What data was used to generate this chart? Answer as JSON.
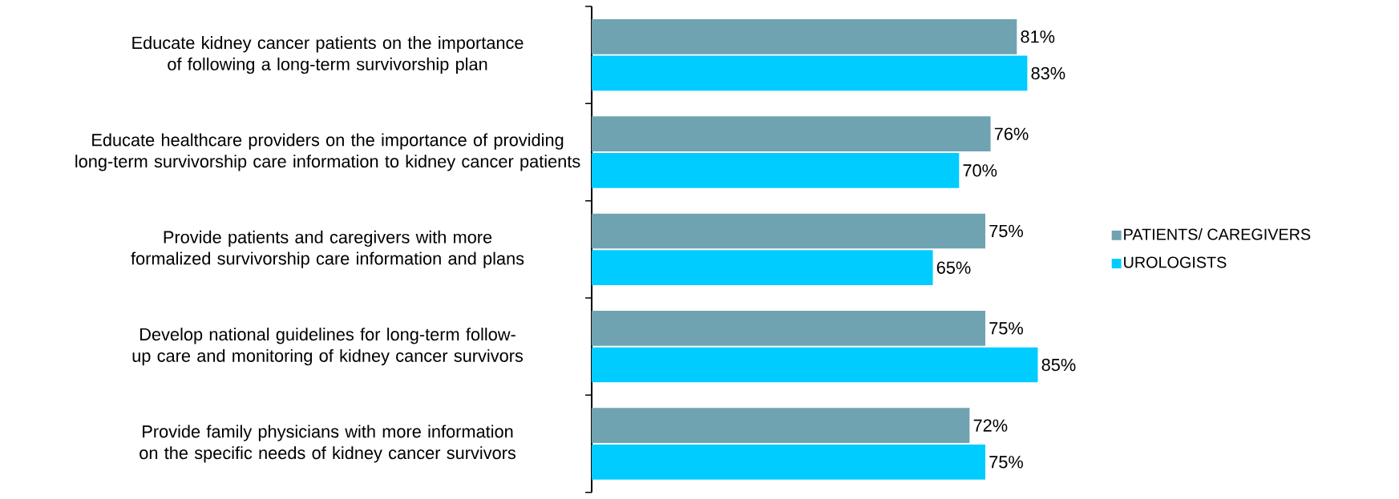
{
  "chart_data": {
    "type": "bar",
    "orientation": "horizontal",
    "categories": [
      "Educate kidney cancer patients on the importance of following a long-term survivorship plan",
      "Educate healthcare providers on the importance of providing long-term survivorship care information to kidney cancer patients",
      "Provide patients and caregivers with more formalized survivorship care information and plans",
      "Develop national guidelines for long-term follow-up care and monitoring of kidney cancer survivors",
      "Provide family physicians with more information on the specific needs of kidney cancer survivors"
    ],
    "series": [
      {
        "name": "PATIENTS/ CAREGIVERS",
        "color": "#6fa3b2",
        "values": [
          81,
          76,
          75,
          75,
          72
        ],
        "value_labels": [
          "81%",
          "76%",
          "75%",
          "75%",
          "72%"
        ]
      },
      {
        "name": "UROLOGISTS",
        "color": "#00ccff",
        "values": [
          83,
          70,
          65,
          85,
          75
        ],
        "value_labels": [
          "83%",
          "70%",
          "65%",
          "85%",
          "75%"
        ]
      }
    ],
    "legend": "right",
    "grid": false
  }
}
